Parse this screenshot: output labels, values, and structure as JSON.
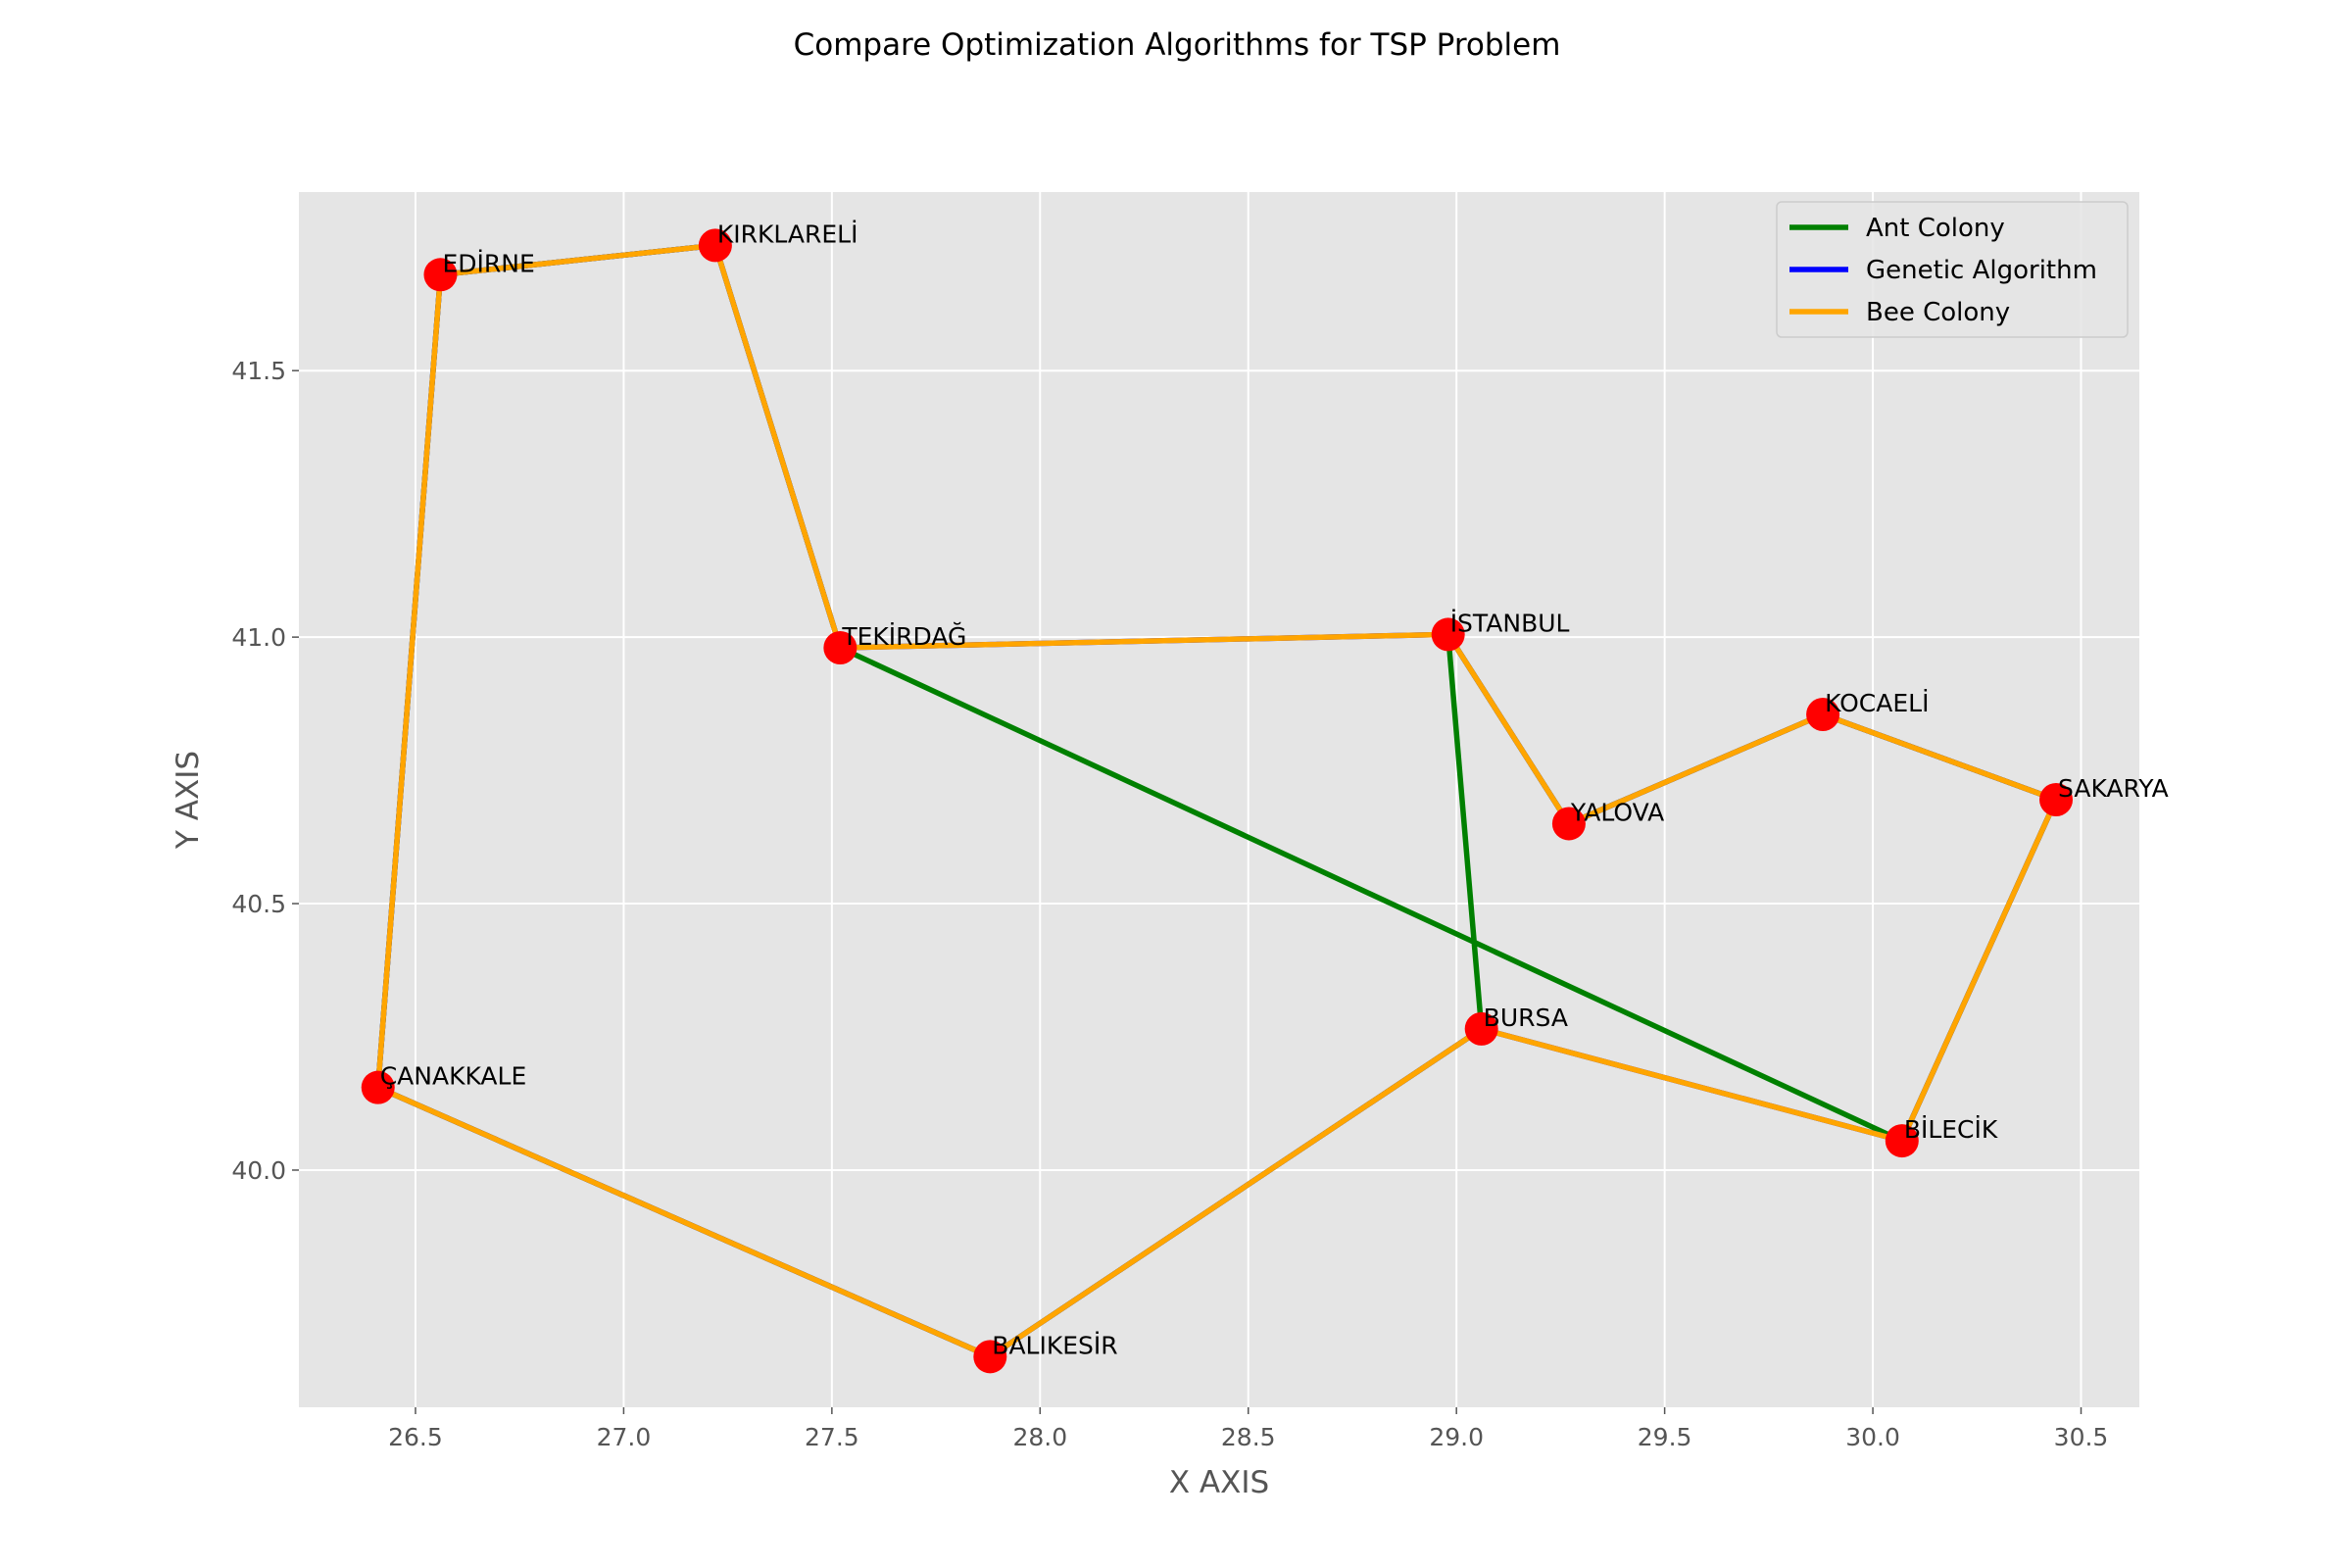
{
  "chart_data": {
    "type": "line",
    "title": "Compare Optimization Algorithms for TSP Problem",
    "xlabel": "X AXIS",
    "ylabel": "Y AXIS",
    "xlim": [
      26.22,
      30.64
    ],
    "ylim": [
      39.555,
      41.835
    ],
    "xticks": [
      26.5,
      27.0,
      27.5,
      28.0,
      28.5,
      29.0,
      29.5,
      30.0,
      30.5
    ],
    "xtick_labels": [
      "26.5",
      "27.0",
      "27.5",
      "28.0",
      "28.5",
      "29.0",
      "29.5",
      "30.0",
      "30.5"
    ],
    "yticks": [
      40.0,
      40.5,
      41.0,
      41.5
    ],
    "ytick_labels": [
      "40.0",
      "40.5",
      "41.0",
      "41.5"
    ],
    "grid": true,
    "legend_position": "top-right",
    "cities": [
      {
        "name": "EDİRNE",
        "x": 26.56,
        "y": 41.68
      },
      {
        "name": "KIRKLARELİ",
        "x": 27.22,
        "y": 41.735
      },
      {
        "name": "TEKİRDAĞ",
        "x": 27.52,
        "y": 40.98
      },
      {
        "name": "İSTANBUL",
        "x": 28.98,
        "y": 41.005
      },
      {
        "name": "YALOVA",
        "x": 29.27,
        "y": 40.65
      },
      {
        "name": "KOCAELİ",
        "x": 29.88,
        "y": 40.855
      },
      {
        "name": "SAKARYA",
        "x": 30.44,
        "y": 40.695
      },
      {
        "name": "BURSA",
        "x": 29.06,
        "y": 40.265
      },
      {
        "name": "BİLECİK",
        "x": 30.07,
        "y": 40.055
      },
      {
        "name": "ÇANAKKALE",
        "x": 26.41,
        "y": 40.155
      },
      {
        "name": "BALIKESİR",
        "x": 27.88,
        "y": 39.65
      }
    ],
    "series": [
      {
        "name": "Ant Colony",
        "color": "#008000",
        "route": [
          "EDİRNE",
          "KIRKLARELİ",
          "TEKİRDAĞ",
          "BİLECİK",
          "SAKARYA",
          "KOCAELİ",
          "YALOVA",
          "İSTANBUL",
          "BURSA",
          "BALIKESİR",
          "ÇANAKKALE",
          "EDİRNE"
        ]
      },
      {
        "name": "Genetic Algorithm",
        "color": "#0000ff",
        "route": [
          "EDİRNE",
          "KIRKLARELİ",
          "TEKİRDAĞ",
          "İSTANBUL",
          "YALOVA",
          "KOCAELİ",
          "SAKARYA",
          "BİLECİK",
          "BURSA",
          "BALIKESİR",
          "ÇANAKKALE",
          "EDİRNE"
        ]
      },
      {
        "name": "Bee Colony",
        "color": "#ffa500",
        "route": [
          "EDİRNE",
          "KIRKLARELİ",
          "TEKİRDAĞ",
          "İSTANBUL",
          "YALOVA",
          "KOCAELİ",
          "SAKARYA",
          "BİLECİK",
          "BURSA",
          "BALIKESİR",
          "ÇANAKKALE",
          "EDİRNE"
        ]
      }
    ],
    "marker_color": "#ff0000",
    "plot_background": "#e5e5e5",
    "grid_color": "#ffffff"
  }
}
